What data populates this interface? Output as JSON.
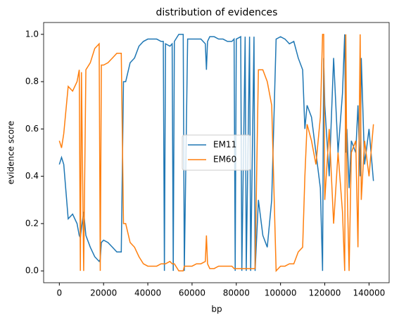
{
  "chart_data": {
    "type": "line",
    "title": "distribution of evidences",
    "xlabel": "bp",
    "ylabel": "evidence score",
    "x": [
      0,
      1000,
      2000,
      4000,
      6000,
      8000,
      9000,
      9500,
      10000,
      11000,
      12000,
      14000,
      16000,
      18000,
      18500,
      19000,
      20000,
      22000,
      24000,
      26000,
      28000,
      29000,
      30000,
      32000,
      34000,
      36000,
      38000,
      40000,
      42000,
      44000,
      46000,
      47000,
      47500,
      48000,
      50000,
      51000,
      51500,
      52000,
      54000,
      56000,
      56500,
      58000,
      60000,
      62000,
      64000,
      66000,
      66500,
      67000,
      68000,
      70000,
      72000,
      74000,
      76000,
      78000,
      79000,
      79500,
      80000,
      82000,
      82500,
      84000,
      84500,
      86000,
      86500,
      88000,
      88500,
      90000,
      92000,
      94000,
      96000,
      98000,
      100000,
      102000,
      104000,
      106000,
      108000,
      110000,
      111000,
      112000,
      114000,
      116000,
      118000,
      119000,
      119500,
      120000,
      122000,
      124000,
      126000,
      128000,
      129000,
      129500,
      130000,
      131000,
      132000,
      134000,
      135000,
      136000,
      136500,
      138000,
      140000,
      142000
    ],
    "series": [
      {
        "name": "EM11",
        "color": "#1f77b4",
        "values": [
          0.45,
          0.48,
          0.45,
          0.22,
          0.24,
          0.2,
          0.15,
          0.14,
          0.18,
          0.25,
          0.15,
          0.1,
          0.06,
          0.04,
          0.05,
          0.12,
          0.13,
          0.12,
          0.1,
          0.08,
          0.08,
          0.8,
          0.8,
          0.88,
          0.9,
          0.95,
          0.97,
          0.98,
          0.98,
          0.98,
          0.97,
          0.97,
          0.0,
          0.96,
          0.95,
          0.96,
          0.0,
          0.97,
          1.0,
          1.0,
          0.0,
          0.98,
          0.98,
          0.98,
          0.98,
          0.96,
          0.85,
          0.97,
          0.99,
          0.99,
          0.98,
          0.98,
          0.97,
          0.97,
          0.98,
          0.0,
          0.98,
          0.99,
          0.0,
          0.99,
          0.0,
          0.99,
          0.0,
          0.99,
          0.0,
          0.3,
          0.15,
          0.1,
          0.3,
          0.98,
          0.99,
          0.98,
          0.96,
          0.97,
          0.9,
          0.85,
          0.6,
          0.7,
          0.65,
          0.5,
          0.35,
          0.0,
          0.9,
          0.7,
          0.4,
          0.9,
          0.5,
          0.75,
          1.0,
          0.5,
          0.6,
          0.35,
          0.55,
          0.5,
          0.7,
          0.4,
          0.9,
          0.45,
          0.6,
          0.38
        ]
      },
      {
        "name": "EM60",
        "color": "#ff7f0e",
        "values": [
          0.55,
          0.52,
          0.58,
          0.78,
          0.76,
          0.8,
          0.85,
          0.0,
          0.84,
          0.0,
          0.85,
          0.88,
          0.94,
          0.96,
          0.0,
          0.87,
          0.87,
          0.88,
          0.9,
          0.92,
          0.92,
          0.2,
          0.2,
          0.12,
          0.1,
          0.06,
          0.03,
          0.02,
          0.02,
          0.02,
          0.03,
          0.03,
          0.03,
          0.03,
          0.04,
          0.03,
          0.03,
          0.03,
          0.0,
          0.0,
          0.02,
          0.02,
          0.02,
          0.03,
          0.03,
          0.04,
          0.15,
          0.03,
          0.01,
          0.01,
          0.02,
          0.02,
          0.02,
          0.02,
          0.01,
          0.01,
          0.01,
          0.01,
          0.01,
          0.01,
          0.01,
          0.01,
          0.01,
          0.01,
          0.01,
          0.85,
          0.85,
          0.8,
          0.7,
          0.0,
          0.02,
          0.02,
          0.03,
          0.03,
          0.08,
          0.1,
          0.4,
          0.62,
          0.55,
          0.45,
          0.65,
          1.0,
          1.0,
          0.3,
          0.6,
          0.2,
          0.5,
          0.25,
          0.0,
          1.0,
          0.4,
          0.0,
          0.5,
          0.55,
          0.1,
          1.0,
          0.3,
          0.55,
          0.4,
          0.62
        ]
      }
    ],
    "xlim": [
      -7100,
      149100
    ],
    "ylim": [
      -0.05,
      1.05
    ],
    "xticks": [
      0,
      20000,
      40000,
      60000,
      80000,
      100000,
      120000,
      140000
    ],
    "yticks": [
      {
        "value": 0,
        "label": "0.0"
      },
      0.2,
      0.4,
      0.6,
      0.8,
      {
        "value": 1,
        "label": "1.0"
      }
    ],
    "legend": "center"
  }
}
